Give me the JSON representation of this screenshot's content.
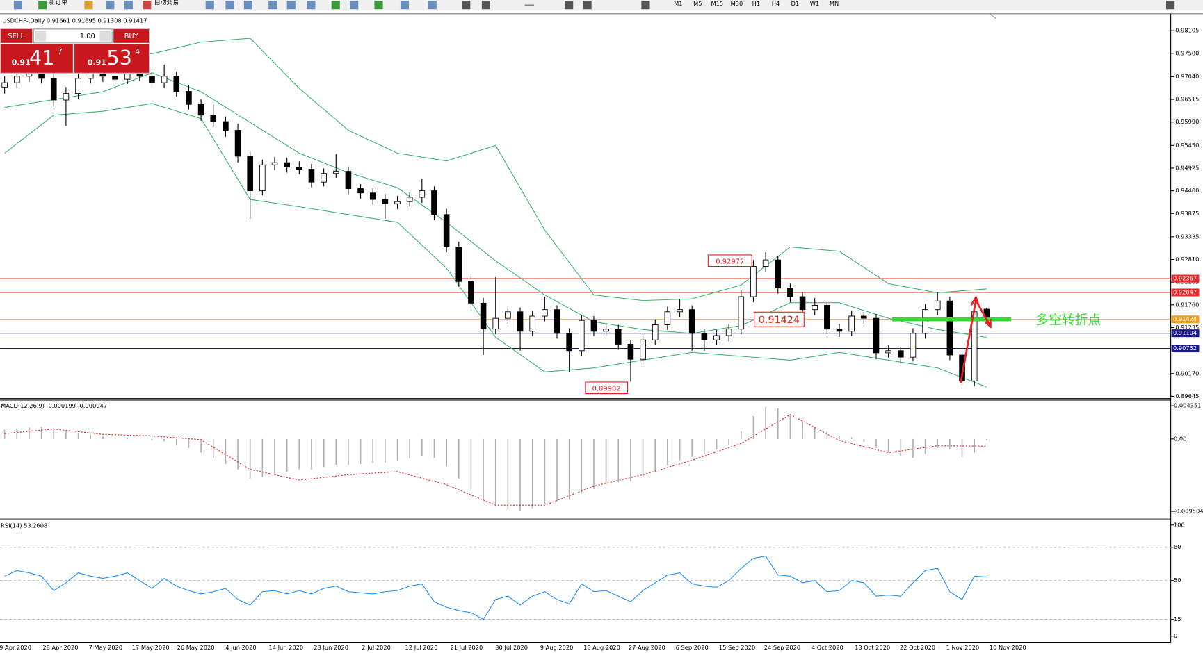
{
  "toolbar": {
    "new_order": "新订单",
    "auto_trading": "自动交易",
    "timeframes": [
      "M1",
      "M5",
      "M15",
      "M30",
      "H1",
      "H4",
      "D1",
      "W1",
      "MN"
    ]
  },
  "trade_panel": {
    "sell": "SELL",
    "buy": "BUY",
    "lots": "1.00",
    "sell_price": {
      "prefix": "0.91",
      "big": "41",
      "sup": "7"
    },
    "buy_price": {
      "prefix": "0.91",
      "big": "53",
      "sup": "4"
    }
  },
  "chart": {
    "title": "USDCHF-,Daily 0.91661 0.91695 0.91308 0.91417",
    "ylim": [
      0.89592,
      0.9846
    ],
    "yticks": [
      0.98105,
      {
        "value": 0.9758,
        "label": "0.97580"
      },
      {
        "value": 0.9704,
        "label": "0.97040"
      },
      0.96515,
      {
        "value": 0.9599,
        "label": "0.95990"
      },
      {
        "value": 0.9545,
        "label": "0.95450"
      },
      0.94925,
      {
        "value": 0.944,
        "label": "0.94400"
      },
      0.93875,
      0.93335,
      {
        "value": 0.9281,
        "label": "0.92810"
      },
      0.92285,
      {
        "value": 0.9176,
        "label": "0.91760"
      },
      0.91235,
      {
        "value": 0.9017,
        "label": "0.90170"
      },
      0.89645
    ],
    "candles": {
      "open": [
        0.968,
        0.969,
        0.9705,
        0.9715,
        0.97,
        0.965,
        0.9665,
        0.97,
        0.9712,
        0.9705,
        0.9698,
        0.971,
        0.9705,
        0.969,
        0.9705,
        0.967,
        0.964,
        0.9615,
        0.96,
        0.958,
        0.952,
        0.944,
        0.95,
        0.9505,
        0.9495,
        0.949,
        0.946,
        0.948,
        0.9485,
        0.9445,
        0.9435,
        0.942,
        0.941,
        0.9415,
        0.9425,
        0.944,
        0.9385,
        0.931,
        0.923,
        0.918,
        0.912,
        0.9145,
        0.916,
        0.9115,
        0.915,
        0.9165,
        0.911,
        0.907,
        0.914,
        0.9115,
        0.912,
        0.9085,
        0.905,
        0.9095,
        0.913,
        0.916,
        0.9165,
        0.911,
        0.9095,
        0.9105,
        0.912,
        0.9195,
        0.9265,
        0.928,
        0.9215,
        0.9195,
        0.9165,
        0.9175,
        0.912,
        0.9115,
        0.915,
        0.9145,
        0.9065,
        0.907,
        0.9055,
        0.911,
        0.9165,
        0.9185,
        0.906,
        0.9,
        0.91661
      ],
      "high": [
        0.9705,
        0.9718,
        0.9728,
        0.973,
        0.9712,
        0.968,
        0.9714,
        0.9726,
        0.9722,
        0.9716,
        0.9724,
        0.9722,
        0.9716,
        0.9732,
        0.9716,
        0.9684,
        0.9652,
        0.964,
        0.9612,
        0.9595,
        0.953,
        0.9512,
        0.9518,
        0.9516,
        0.9508,
        0.9502,
        0.9492,
        0.9525,
        0.9496,
        0.9455,
        0.9446,
        0.9432,
        0.9428,
        0.9436,
        0.9468,
        0.945,
        0.9398,
        0.9322,
        0.9242,
        0.9192,
        0.924,
        0.9172,
        0.917,
        0.9162,
        0.9195,
        0.9175,
        0.9122,
        0.9152,
        0.915,
        0.9132,
        0.913,
        0.9095,
        0.9108,
        0.9142,
        0.9172,
        0.919,
        0.9175,
        0.912,
        0.9118,
        0.9132,
        0.921,
        0.928,
        0.92977,
        0.929,
        0.9225,
        0.9205,
        0.9192,
        0.9185,
        0.9132,
        0.9162,
        0.916,
        0.9155,
        0.9082,
        0.908,
        0.9122,
        0.9178,
        0.9205,
        0.9195,
        0.907,
        0.9172,
        0.91695
      ],
      "low": [
        0.9665,
        0.9678,
        0.9692,
        0.9688,
        0.9635,
        0.959,
        0.9652,
        0.9688,
        0.9692,
        0.9686,
        0.9687,
        0.9694,
        0.9676,
        0.9678,
        0.9658,
        0.9628,
        0.9602,
        0.9588,
        0.9565,
        0.9505,
        0.9375,
        0.943,
        0.9488,
        0.9482,
        0.9478,
        0.9448,
        0.945,
        0.947,
        0.9432,
        0.9422,
        0.9408,
        0.9375,
        0.9398,
        0.9404,
        0.9412,
        0.9372,
        0.9298,
        0.9218,
        0.9168,
        0.906,
        0.9108,
        0.9132,
        0.907,
        0.9104,
        0.9138,
        0.9098,
        0.902,
        0.9058,
        0.9104,
        0.9104,
        0.9072,
        0.89982,
        0.9038,
        0.9084,
        0.9118,
        0.9148,
        0.907,
        0.907,
        0.9084,
        0.9092,
        0.9108,
        0.9182,
        0.9252,
        0.9202,
        0.9182,
        0.915,
        0.9152,
        0.9108,
        0.9102,
        0.9104,
        0.9132,
        0.905,
        0.9054,
        0.904,
        0.9045,
        0.9098,
        0.9152,
        0.9048,
        0.899,
        0.8988,
        0.91308
      ],
      "close": [
        0.969,
        0.9705,
        0.9715,
        0.97,
        0.965,
        0.9665,
        0.97,
        0.9712,
        0.9705,
        0.9698,
        0.971,
        0.9705,
        0.969,
        0.9705,
        0.967,
        0.964,
        0.9615,
        0.96,
        0.958,
        0.952,
        0.944,
        0.95,
        0.9505,
        0.9495,
        0.949,
        0.946,
        0.948,
        0.9485,
        0.9445,
        0.9435,
        0.942,
        0.941,
        0.9415,
        0.9425,
        0.944,
        0.9385,
        0.931,
        0.923,
        0.918,
        0.912,
        0.9145,
        0.916,
        0.9115,
        0.915,
        0.9165,
        0.911,
        0.907,
        0.914,
        0.9115,
        0.912,
        0.9085,
        0.905,
        0.9095,
        0.913,
        0.916,
        0.9165,
        0.911,
        0.9095,
        0.9105,
        0.912,
        0.9195,
        0.9265,
        0.928,
        0.9215,
        0.9195,
        0.9165,
        0.9175,
        0.912,
        0.9115,
        0.915,
        0.9145,
        0.9065,
        0.907,
        0.9055,
        0.911,
        0.9165,
        0.9185,
        0.906,
        0.9,
        0.916,
        0.91417
      ]
    },
    "bands": {
      "color": "#3cb371",
      "upper": [
        0.9766,
        0.9775,
        0.9771,
        0.9757,
        0.9784,
        0.9793,
        0.9677,
        0.958,
        0.9527,
        0.9509,
        0.9545,
        0.9349,
        0.9199,
        0.9186,
        0.919,
        0.9222,
        0.931,
        0.93,
        0.9225,
        0.9204,
        0.9213
      ],
      "middle": [
        0.9633,
        0.9651,
        0.9669,
        0.9713,
        0.9669,
        0.9598,
        0.9527,
        0.9482,
        0.9447,
        0.9367,
        0.9278,
        0.9199,
        0.9137,
        0.9119,
        0.911,
        0.9128,
        0.9181,
        0.9181,
        0.9145,
        0.9119,
        0.9101
      ],
      "lower": [
        0.9527,
        0.9615,
        0.9624,
        0.9642,
        0.9607,
        0.942,
        0.9403,
        0.9385,
        0.9367,
        0.9261,
        0.9101,
        0.9021,
        0.903,
        0.9048,
        0.9066,
        0.9057,
        0.9048,
        0.9066,
        0.9048,
        0.903,
        0.8986
      ]
    },
    "levels": [
      {
        "value": 0.92367,
        "color": "#e8262a"
      },
      {
        "value": 0.92047,
        "color": "#e8262a"
      },
      {
        "value": 0.91424,
        "color": "#f0a020"
      },
      {
        "value": 0.91104,
        "color": "#1a1a8c"
      },
      {
        "value": 0.90752,
        "color": "#1a1a8c"
      }
    ],
    "annotations": [
      {
        "value": 0.92977
      },
      {
        "value": 0.89982
      },
      {
        "value": 0.91424
      }
    ],
    "pivot": {
      "label": "多空转折点",
      "color": "#33dd33"
    },
    "dates": [
      "9 Apr 2020",
      "28 Apr 2020",
      "7 May 2020",
      "17 May 2020",
      "26 May 2020",
      "4 Jun 2020",
      "14 Jun 2020",
      "23 Jun 2020",
      "2 Jul 2020",
      "12 Jul 2020",
      "21 Jul 2020",
      "30 Jul 2020",
      "9 Aug 2020",
      "18 Aug 2020",
      "27 Aug 2020",
      "6 Sep 2020",
      "15 Sep 2020",
      "24 Sep 2020",
      "4 Oct 2020",
      "13 Oct 2020",
      "22 Oct 2020",
      "1 Nov 2020",
      "10 Nov 2020"
    ]
  },
  "macd": {
    "title": "MACD(12,26,9) -0.000199 -0.000947",
    "ylim": [
      -0.0104,
      0.0051
    ],
    "yticks": [
      0.004351,
      {
        "value": 0,
        "label": "0.00"
      },
      -0.009504
    ],
    "histogram": [
      0.0012,
      0.0013,
      0.0015,
      0.0016,
      0.0014,
      0.001,
      0.0008,
      0.0005,
      0.0003,
      0.0002,
      0.0001,
      0.0,
      -0.0002,
      -0.0003,
      -0.0008,
      -0.0012,
      -0.0018,
      -0.0025,
      -0.0033,
      -0.004,
      -0.0052,
      -0.005,
      -0.0046,
      -0.0043,
      -0.004,
      -0.004,
      -0.0037,
      -0.0034,
      -0.0034,
      -0.0033,
      -0.0032,
      -0.0031,
      -0.0029,
      -0.0026,
      -0.0022,
      -0.0025,
      -0.0036,
      -0.0052,
      -0.0066,
      -0.008,
      -0.0088,
      -0.0093,
      -0.0095,
      -0.0091,
      -0.0085,
      -0.0082,
      -0.008,
      -0.0072,
      -0.0066,
      -0.006,
      -0.0057,
      -0.0056,
      -0.005,
      -0.0043,
      -0.0035,
      -0.0028,
      -0.0024,
      -0.002,
      -0.0014,
      -0.0008,
      0.001,
      0.003,
      0.0042,
      0.004,
      0.0032,
      0.0024,
      0.0016,
      0.001,
      0.0004,
      0.0002,
      -0.0004,
      -0.0012,
      -0.0018,
      -0.0022,
      -0.0025,
      -0.002,
      -0.0012,
      -0.0014,
      -0.0024,
      -0.0018,
      -0.000199
    ],
    "signal": [
      0.0007,
      0.0013,
      0.0006,
      0.0004,
      -0.0001,
      -0.004,
      -0.0054,
      -0.0047,
      -0.0043,
      -0.006,
      -0.0087,
      -0.0087,
      -0.0062,
      -0.0047,
      -0.0028,
      -0.0006,
      0.0032,
      -0.0002,
      -0.0018,
      -0.0009,
      -0.000947
    ]
  },
  "rsi": {
    "title": "RSI(14) 53.2608",
    "ylim": [
      0,
      100
    ],
    "yticks": [
      100,
      80,
      50,
      15,
      0
    ],
    "levels": [
      80,
      50,
      15
    ],
    "color": "#1e90ff",
    "values": [
      54,
      59,
      57,
      54,
      41,
      48,
      57,
      54,
      52,
      54,
      57,
      50,
      43,
      52,
      45,
      41,
      38,
      40,
      43,
      33,
      28,
      40,
      41,
      38,
      41,
      38,
      43,
      45,
      40,
      39,
      38,
      40,
      41,
      45,
      47,
      31,
      26,
      23,
      21,
      15,
      33,
      36,
      28,
      36,
      40,
      33,
      29,
      47,
      40,
      41,
      36,
      31,
      41,
      48,
      55,
      57,
      47,
      45,
      44,
      50,
      61,
      70,
      72,
      55,
      54,
      48,
      50,
      40,
      41,
      50,
      48,
      36,
      37,
      36,
      48,
      59,
      61,
      40,
      33,
      54,
      53.2608
    ]
  }
}
